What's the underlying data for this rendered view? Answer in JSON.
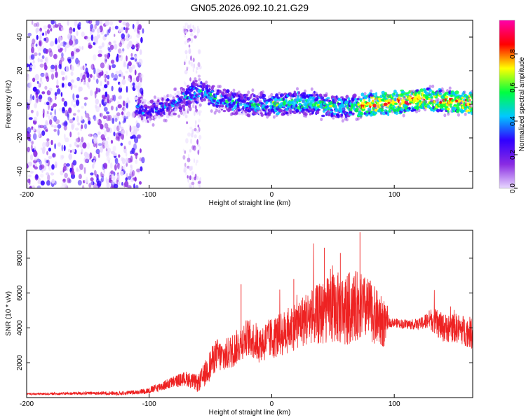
{
  "figure": {
    "title": "GN05.2026.092.10.21.G29"
  },
  "chart_data": [
    {
      "type": "heatmap",
      "title": "GN05.2026.092.10.21.G29",
      "xlabel": "Height of straight line (km)",
      "ylabel": "Frequency (Hz)",
      "xlim": [
        -200,
        164
      ],
      "ylim": [
        -50,
        50
      ],
      "xticks": [
        -200,
        -100,
        0,
        100
      ],
      "yticks": [
        -40,
        -20,
        0,
        20,
        40
      ],
      "colorbar": {
        "label": "Normalized spectral amplitude",
        "range": [
          0,
          1
        ],
        "ticks": [
          "0.0",
          "0.2",
          "0.4",
          "0.6",
          "0.8"
        ],
        "colormap": [
          "#e8d8ff",
          "#8a2be2",
          "#3000ff",
          "#00c8ff",
          "#00ff40",
          "#ffff00",
          "#ff0000",
          "#ff00aa"
        ]
      },
      "ridge": {
        "x": [
          -110,
          -100,
          -90,
          -80,
          -70,
          -62,
          -55,
          -45,
          -30,
          -10,
          0,
          20,
          40,
          60,
          80,
          100,
          120,
          140,
          164
        ],
        "y": [
          -3,
          -4,
          -2,
          0,
          4,
          8,
          7,
          3,
          1,
          0,
          0,
          1,
          0,
          -2,
          0,
          1,
          3,
          2,
          1
        ]
      },
      "noise_region_x": [
        -200,
        -105
      ],
      "noise_column_x": [
        -72,
        -58
      ]
    },
    {
      "type": "line",
      "xlabel": "Height of straight line (km)",
      "ylabel": "SNR (10 * v/v)",
      "xlim": [
        -200,
        164
      ],
      "ylim": [
        0,
        9600
      ],
      "xticks": [
        -200,
        -100,
        0,
        100
      ],
      "yticks": [
        2000,
        4000,
        6000,
        8000
      ],
      "color": "#ee2222",
      "envelope": {
        "x": [
          -200,
          -150,
          -120,
          -100,
          -90,
          -80,
          -70,
          -60,
          -55,
          -45,
          -40,
          -30,
          -20,
          -10,
          0,
          10,
          20,
          30,
          40,
          50,
          60,
          70,
          80,
          90,
          100,
          110,
          120,
          130,
          140,
          150,
          164
        ],
        "y": [
          200,
          250,
          250,
          400,
          650,
          900,
          1100,
          800,
          1300,
          2500,
          2300,
          2800,
          3500,
          3100,
          3400,
          3700,
          4200,
          4600,
          4800,
          5200,
          5000,
          5300,
          5000,
          4300,
          4300,
          4200,
          4200,
          4500,
          4000,
          4000,
          3700
        ]
      },
      "spread": {
        "x": [
          -200,
          -110,
          -60,
          -50,
          -30,
          0,
          20,
          40,
          60,
          80,
          92,
          95,
          120,
          135,
          164
        ],
        "y": [
          60,
          120,
          500,
          900,
          1000,
          1200,
          1400,
          1800,
          2200,
          1800,
          1400,
          250,
          300,
          800,
          900
        ]
      },
      "peaks": [
        {
          "x": -25,
          "y": 6500
        },
        {
          "x": 43,
          "y": 8600
        },
        {
          "x": 72,
          "y": 9500
        },
        {
          "x": 18,
          "y": 6800
        },
        {
          "x": 56,
          "y": 8300
        }
      ]
    }
  ]
}
